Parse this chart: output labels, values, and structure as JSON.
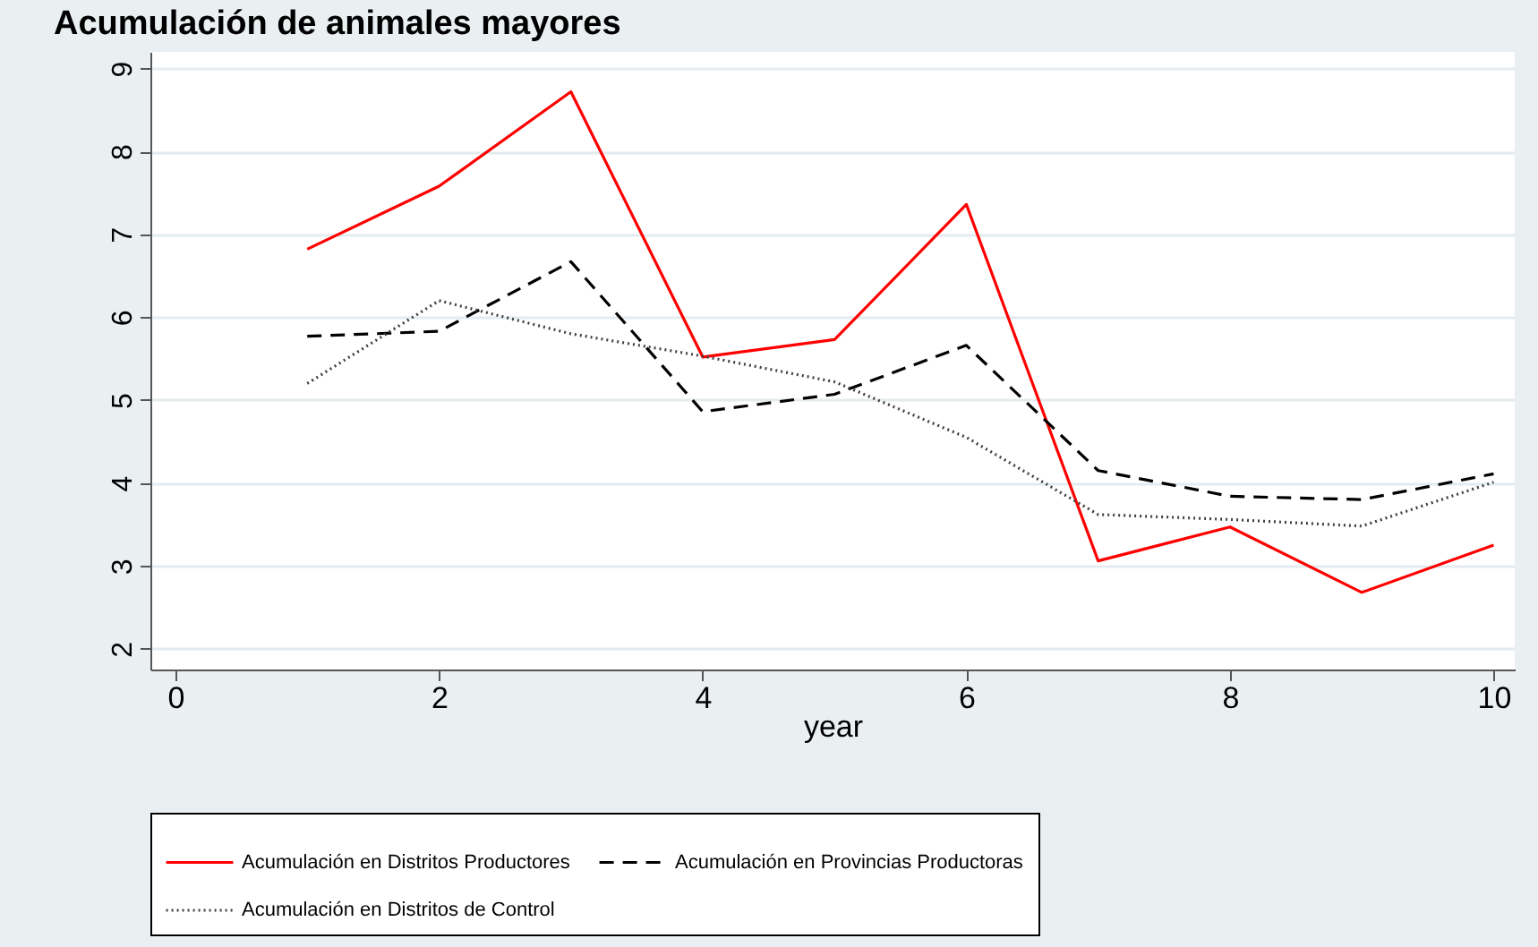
{
  "chart_data": {
    "type": "line",
    "title": "Acumulación de animales mayores",
    "xlabel": "year",
    "x": [
      1,
      2,
      3,
      4,
      5,
      6,
      7,
      8,
      9,
      10
    ],
    "series": [
      {
        "name": "Acumulación en Distritos Productores",
        "color": "#ff0000",
        "line_style": "solid",
        "values": [
          6.82,
          7.58,
          8.72,
          5.52,
          5.73,
          7.36,
          3.06,
          3.47,
          2.68,
          3.25
        ]
      },
      {
        "name": "Acumulación en Provincias Productoras",
        "color": "#000000",
        "line_style": "dashed",
        "values": [
          5.77,
          5.83,
          6.67,
          4.86,
          5.07,
          5.66,
          4.15,
          3.84,
          3.8,
          4.11
        ]
      },
      {
        "name": "Acumulación en Distritos de Control",
        "color": "#404040",
        "line_style": "dotted",
        "values": [
          5.2,
          6.2,
          5.8,
          5.53,
          5.22,
          4.55,
          3.62,
          3.56,
          3.48,
          4.01
        ]
      }
    ],
    "xlim": [
      -0.19,
      10.16
    ],
    "ylim": [
      1.75,
      9.2
    ],
    "xticks": [
      0,
      2,
      4,
      6,
      8,
      10
    ],
    "yticks": [
      2,
      3,
      4,
      5,
      6,
      7,
      8,
      9
    ],
    "grid": "y",
    "legend": "bottom",
    "marker": "none"
  }
}
